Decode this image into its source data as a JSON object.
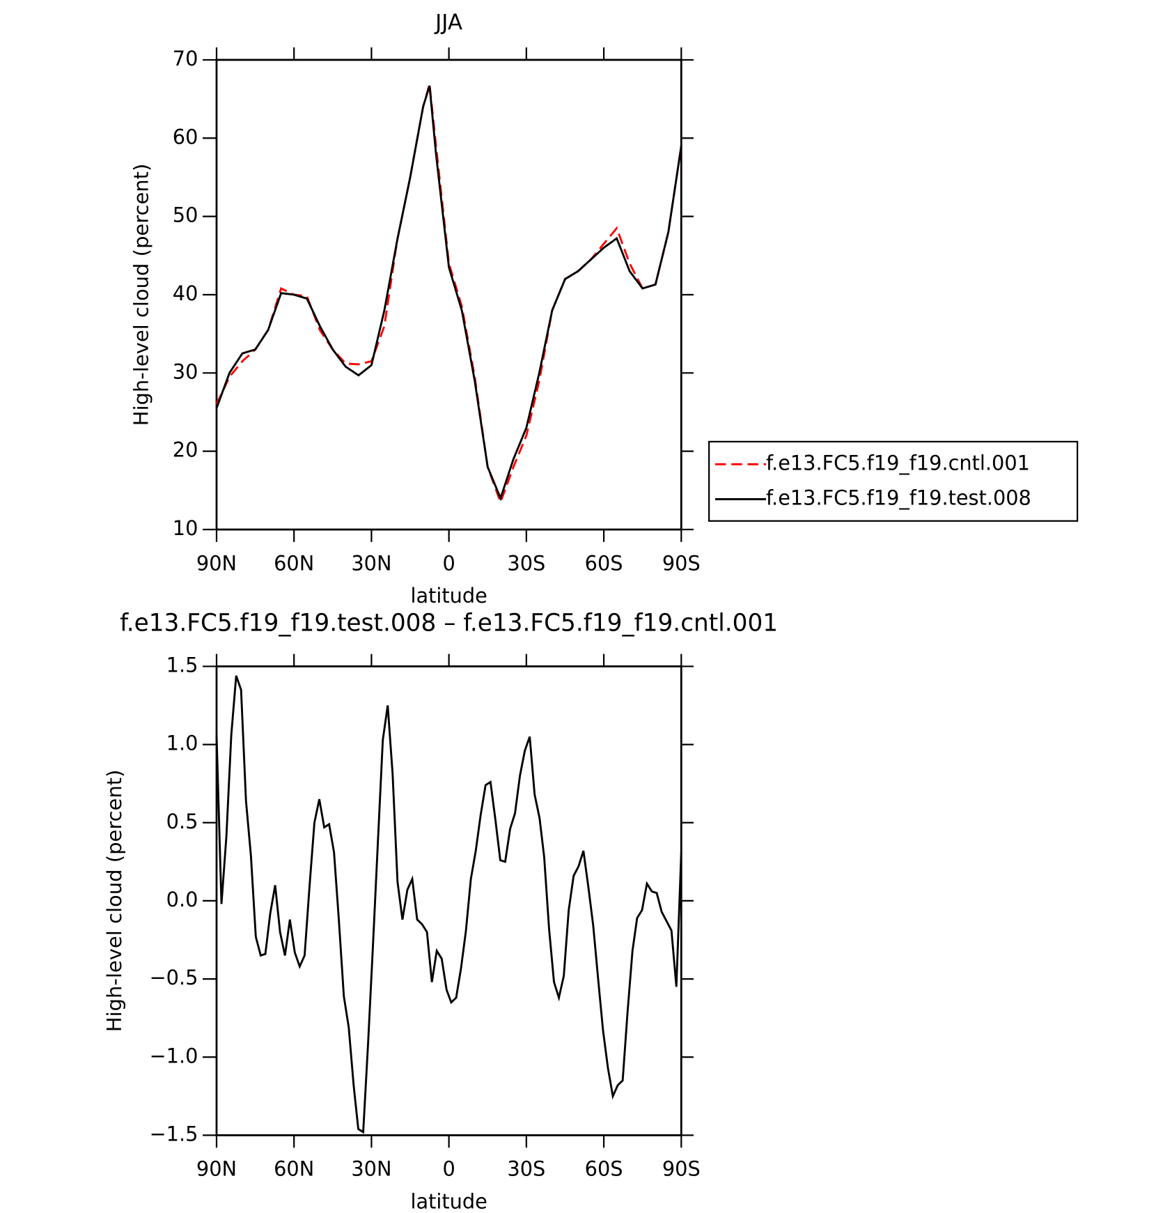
{
  "chart_data": [
    {
      "type": "line",
      "title": "JJA",
      "xlabel": "latitude",
      "ylabel": "High-level cloud (percent)",
      "x": [
        90,
        85,
        80,
        75,
        70,
        65,
        60,
        55,
        50,
        45,
        40,
        35,
        30,
        25,
        20,
        15,
        10,
        7.5,
        5,
        0,
        -5,
        -10,
        -15,
        -20,
        -25,
        -30,
        -35,
        -40,
        -45,
        -50,
        -55,
        -60,
        -65,
        -70,
        -75,
        -80,
        -85,
        -90
      ],
      "xlim": [
        90,
        -90
      ],
      "xticks": [
        {
          "value": 90,
          "label": "90N"
        },
        {
          "value": 60,
          "label": "60N"
        },
        {
          "value": 30,
          "label": "30N"
        },
        0,
        {
          "value": -30,
          "label": "30S"
        },
        {
          "value": -60,
          "label": "60S"
        },
        {
          "value": -90,
          "label": "90S"
        }
      ],
      "ylim": [
        10,
        70
      ],
      "yticks": [
        10,
        20,
        30,
        40,
        50,
        60,
        70
      ],
      "legend": "right",
      "series": [
        {
          "name": "f.e13.FC5.f19_f19.cntl.001",
          "color": "#ff0000",
          "style": "dashed",
          "values": [
            26,
            29.5,
            31.5,
            33,
            35.5,
            40.8,
            40,
            39.8,
            35.5,
            33,
            31.2,
            31.1,
            31.5,
            36,
            47,
            55,
            64,
            66.9,
            59,
            44,
            38.5,
            29.5,
            18,
            13.5,
            18,
            22,
            29,
            38,
            42,
            43,
            44.5,
            46.5,
            48.5,
            44,
            40.8,
            41.3,
            48,
            59
          ]
        },
        {
          "name": "f.e13.FC5.f19_f19.test.008",
          "color": "#000000",
          "style": "solid",
          "values": [
            25.5,
            30,
            32.5,
            33,
            35.5,
            40.2,
            40,
            39.5,
            36,
            33,
            30.8,
            29.7,
            31,
            38,
            47,
            55,
            64,
            66.7,
            58,
            43.5,
            38,
            29,
            18,
            14,
            19,
            23,
            30,
            38,
            42,
            43,
            44.5,
            46,
            47.2,
            43,
            40.8,
            41.3,
            48,
            59
          ]
        }
      ]
    },
    {
      "type": "line",
      "title": "f.e13.FC5.f19_f19.test.008 – f.e13.FC5.f19_f19.cntl.001",
      "xlabel": "latitude",
      "ylabel": "High-level cloud (percent)",
      "x": [
        90,
        88.1,
        86.2,
        84.3,
        82.4,
        80.5,
        78.6,
        76.7,
        74.8,
        72.9,
        71.1,
        69.2,
        67.3,
        65.4,
        63.5,
        61.6,
        59.7,
        57.8,
        55.9,
        54.0,
        52.1,
        50.2,
        48.3,
        46.4,
        44.5,
        42.6,
        40.7,
        38.8,
        36.9,
        35.1,
        33.2,
        31.3,
        29.4,
        27.5,
        25.6,
        23.7,
        21.8,
        19.9,
        18.0,
        16.1,
        14.2,
        12.3,
        10.4,
        8.5,
        6.6,
        4.7,
        2.8,
        0.9,
        -0.9,
        -2.8,
        -4.7,
        -6.6,
        -8.5,
        -10.4,
        -12.3,
        -14.2,
        -16.1,
        -18.0,
        -19.9,
        -21.8,
        -23.7,
        -25.6,
        -27.5,
        -29.4,
        -31.3,
        -33.2,
        -35.1,
        -36.9,
        -38.8,
        -40.7,
        -42.6,
        -44.5,
        -46.4,
        -48.3,
        -50.2,
        -52.1,
        -54.0,
        -55.9,
        -57.8,
        -59.7,
        -61.6,
        -63.5,
        -65.4,
        -67.3,
        -69.2,
        -71.1,
        -72.9,
        -74.8,
        -76.7,
        -78.6,
        -80.5,
        -82.4,
        -84.3,
        -86.2,
        -88.1,
        -90
      ],
      "xlim": [
        90,
        -90
      ],
      "xticks": [
        {
          "value": 90,
          "label": "90N"
        },
        {
          "value": 60,
          "label": "60N"
        },
        {
          "value": 30,
          "label": "30N"
        },
        0,
        {
          "value": -30,
          "label": "30S"
        },
        {
          "value": -60,
          "label": "60S"
        },
        {
          "value": -90,
          "label": "90S"
        }
      ],
      "ylim": [
        -1.5,
        1.5
      ],
      "yticks": [
        {
          "value": -1.5,
          "label": "−1.5"
        },
        {
          "value": -1.0,
          "label": "−1.0"
        },
        {
          "value": -0.5,
          "label": "−0.5"
        },
        {
          "value": 0.0,
          "label": "0.0"
        },
        0.5,
        {
          "value": 1.0,
          "label": "1.0"
        },
        1.5
      ],
      "series": [
        {
          "color": "#000000",
          "style": "solid",
          "values": [
            1.06,
            -0.02,
            0.41,
            1.06,
            1.44,
            1.35,
            0.64,
            0.29,
            -0.23,
            -0.35,
            -0.34,
            -0.08,
            0.1,
            -0.2,
            -0.35,
            -0.12,
            -0.33,
            -0.42,
            -0.35,
            0.09,
            0.5,
            0.65,
            0.47,
            0.49,
            0.31,
            -0.13,
            -0.61,
            -0.81,
            -1.18,
            -1.46,
            -1.48,
            -0.91,
            -0.28,
            0.38,
            1.03,
            1.25,
            0.81,
            0.12,
            -0.12,
            0.07,
            0.14,
            -0.12,
            -0.15,
            -0.2,
            -0.52,
            -0.32,
            -0.37,
            -0.57,
            -0.65,
            -0.62,
            -0.43,
            -0.19,
            0.14,
            0.32,
            0.55,
            0.74,
            0.76,
            0.52,
            0.26,
            0.25,
            0.46,
            0.56,
            0.8,
            0.96,
            1.05,
            0.68,
            0.53,
            0.28,
            -0.18,
            -0.52,
            -0.62,
            -0.48,
            -0.06,
            0.16,
            0.22,
            0.32,
            0.09,
            -0.16,
            -0.5,
            -0.83,
            -1.07,
            -1.25,
            -1.18,
            -1.15,
            -0.71,
            -0.32,
            -0.11,
            -0.06,
            0.11,
            0.06,
            0.05,
            -0.07,
            -0.13,
            -0.19,
            -0.55,
            0.31
          ]
        }
      ]
    }
  ]
}
